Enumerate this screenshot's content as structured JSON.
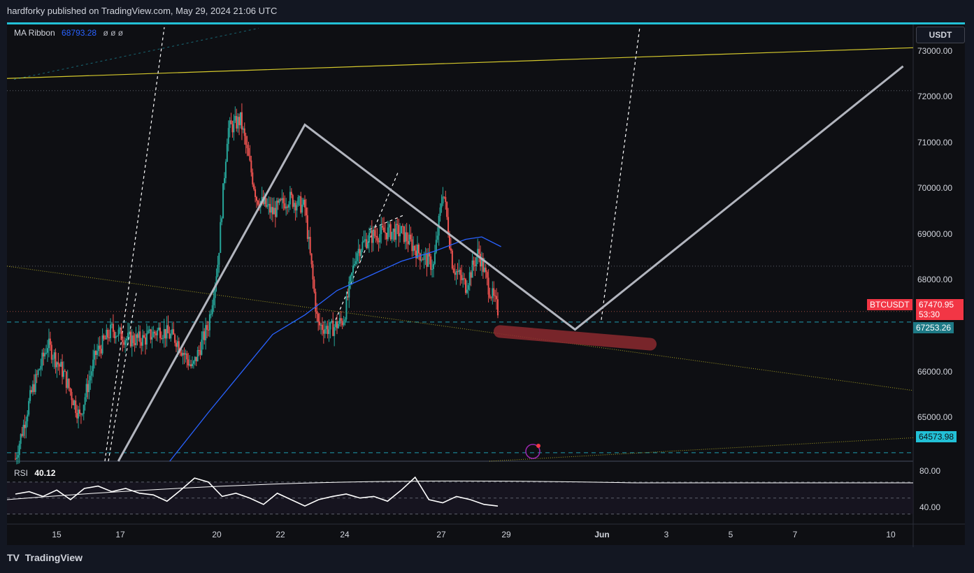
{
  "header": {
    "published": "hardforky published on TradingView.com, May 29, 2024 21:06 UTC"
  },
  "legend": {
    "ma_name": "MA Ribbon",
    "ma_value": "68793.28",
    "ma_symbols": "ø  ø  ø",
    "rsi_name": "RSI",
    "rsi_value": "40.12"
  },
  "price_axis": {
    "unit": "USDT",
    "labels": [
      "73000.00",
      "72000.00",
      "71000.00",
      "70000.00",
      "69000.00",
      "68000.00",
      "66000.00",
      "65000.00"
    ]
  },
  "rsi_axis": {
    "labels": [
      "80.00",
      "40.00"
    ]
  },
  "time_axis": {
    "labels": [
      "15",
      "17",
      "20",
      "22",
      "24",
      "27",
      "29",
      "Jun",
      "3",
      "5",
      "7",
      "10"
    ]
  },
  "tags": {
    "symbol": "BTCUSDT",
    "price": "67470.95",
    "countdown": "53:30",
    "mark1": "67253.26",
    "mark2": "64573.98"
  },
  "footer": {
    "brand": "TradingView",
    "logo": "TV"
  },
  "colors": {
    "background": "#0e0f13",
    "up": "#26a69a",
    "down": "#ef5350",
    "ma": "#2962ff",
    "pattern": "#b2b5be",
    "trend": "#d4c82c",
    "highlight": "#8b2a2f",
    "accent": "#22c0d6"
  },
  "chart_data": {
    "type": "candlestick",
    "symbol": "BTCUSDT",
    "current_price": 67470.95,
    "price_range": [
      64400,
      73300
    ],
    "price_series": [
      {
        "t": 0,
        "p": 64450
      },
      {
        "t": 0.5,
        "p": 65800
      },
      {
        "t": 1,
        "p": 66800
      },
      {
        "t": 1.5,
        "p": 66200
      },
      {
        "t": 2,
        "p": 65300
      },
      {
        "t": 2.5,
        "p": 66600
      },
      {
        "t": 3,
        "p": 67100
      },
      {
        "t": 3.5,
        "p": 66900
      },
      {
        "t": 4,
        "p": 66900
      },
      {
        "t": 4.5,
        "p": 67100
      },
      {
        "t": 5,
        "p": 66900
      },
      {
        "t": 5.5,
        "p": 66300
      },
      {
        "t": 6,
        "p": 67200
      },
      {
        "t": 6.3,
        "p": 68500
      },
      {
        "t": 6.6,
        "p": 71200
      },
      {
        "t": 7,
        "p": 71400
      },
      {
        "t": 7.5,
        "p": 69800
      },
      {
        "t": 8,
        "p": 69500
      },
      {
        "t": 8.5,
        "p": 69800
      },
      {
        "t": 9,
        "p": 69600
      },
      {
        "t": 9.4,
        "p": 67200
      },
      {
        "t": 9.8,
        "p": 67100
      },
      {
        "t": 10.2,
        "p": 67300
      },
      {
        "t": 10.6,
        "p": 68700
      },
      {
        "t": 11,
        "p": 69000
      },
      {
        "t": 11.5,
        "p": 69100
      },
      {
        "t": 12,
        "p": 69100
      },
      {
        "t": 12.5,
        "p": 68700
      },
      {
        "t": 13,
        "p": 68400
      },
      {
        "t": 13.3,
        "p": 70000
      },
      {
        "t": 13.6,
        "p": 68400
      },
      {
        "t": 14,
        "p": 68000
      },
      {
        "t": 14.4,
        "p": 68700
      },
      {
        "t": 14.7,
        "p": 68000
      },
      {
        "t": 15,
        "p": 67500
      }
    ],
    "ma_series": [
      {
        "t": 4.8,
        "p": 64400
      },
      {
        "t": 6,
        "p": 65400
      },
      {
        "t": 7,
        "p": 66200
      },
      {
        "t": 8,
        "p": 67000
      },
      {
        "t": 9,
        "p": 67400
      },
      {
        "t": 10,
        "p": 67900
      },
      {
        "t": 11,
        "p": 68200
      },
      {
        "t": 12,
        "p": 68500
      },
      {
        "t": 13,
        "p": 68700
      },
      {
        "t": 14,
        "p": 68950
      },
      {
        "t": 14.5,
        "p": 69000
      },
      {
        "t": 15.1,
        "p": 68800
      }
    ],
    "pattern_path": [
      {
        "t": 3.2,
        "p": 64400
      },
      {
        "t": 9,
        "p": 71300
      },
      {
        "t": 17.4,
        "p": 67100
      },
      {
        "t": 27.6,
        "p": 72500
      }
    ],
    "rsi_series": [
      55,
      58,
      52,
      60,
      48,
      62,
      65,
      58,
      62,
      56,
      54,
      46,
      60,
      75,
      70,
      52,
      56,
      50,
      42,
      56,
      48,
      40,
      48,
      52,
      55,
      50,
      52,
      46,
      60,
      76,
      48,
      44,
      52,
      48,
      42,
      40
    ]
  }
}
